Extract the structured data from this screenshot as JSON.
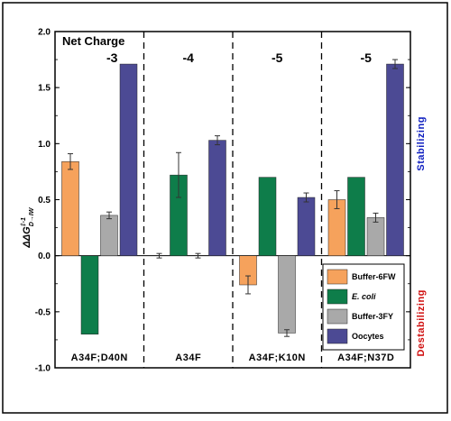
{
  "chart_data": {
    "type": "bar",
    "title": "Net Charge",
    "ylabel": "ΔΔG",
    "ylabel_sup": "‡-1",
    "ylabel_sub": "D→IW",
    "ylim": [
      -1.0,
      2.0
    ],
    "yticks": [
      "-1.0",
      "-0.5",
      "0.0",
      "0.5",
      "1.0",
      "1.5",
      "2.0"
    ],
    "ytick_values": [
      -1.0,
      -0.5,
      0.0,
      0.5,
      1.0,
      1.5,
      2.0
    ],
    "groups": [
      "A34F;D40N",
      "A34F",
      "A34F;K10N",
      "A34F;N37D"
    ],
    "net_charges": [
      "-3",
      "-4",
      "-5",
      "-5"
    ],
    "series": [
      {
        "name": "Buffer-6FW",
        "color": "#f6a25c",
        "values": [
          0.84,
          0.0,
          -0.26,
          0.5
        ],
        "errors": [
          0.07,
          0.02,
          0.08,
          0.08
        ]
      },
      {
        "name": "E. coli",
        "color": "#0e7d4a",
        "values": [
          -0.7,
          0.72,
          0.7,
          0.7
        ],
        "errors": [
          0.0,
          0.2,
          0.0,
          0.0
        ]
      },
      {
        "name": "Buffer-3FY",
        "color": "#a9a9a9",
        "values": [
          0.36,
          0.0,
          -0.69,
          0.34
        ],
        "errors": [
          0.03,
          0.02,
          0.03,
          0.04
        ]
      },
      {
        "name": "Oocytes",
        "color": "#4c4a94",
        "values": [
          1.71,
          1.03,
          0.52,
          1.71
        ],
        "errors": [
          0.0,
          0.04,
          0.04,
          0.04
        ]
      }
    ],
    "grid": false,
    "legend_position": "bottom-right",
    "side_labels": {
      "top": {
        "text": "Stabilizing",
        "color": "#1020c0"
      },
      "bottom": {
        "text": "Destabilizing",
        "color": "#d01010"
      }
    }
  }
}
